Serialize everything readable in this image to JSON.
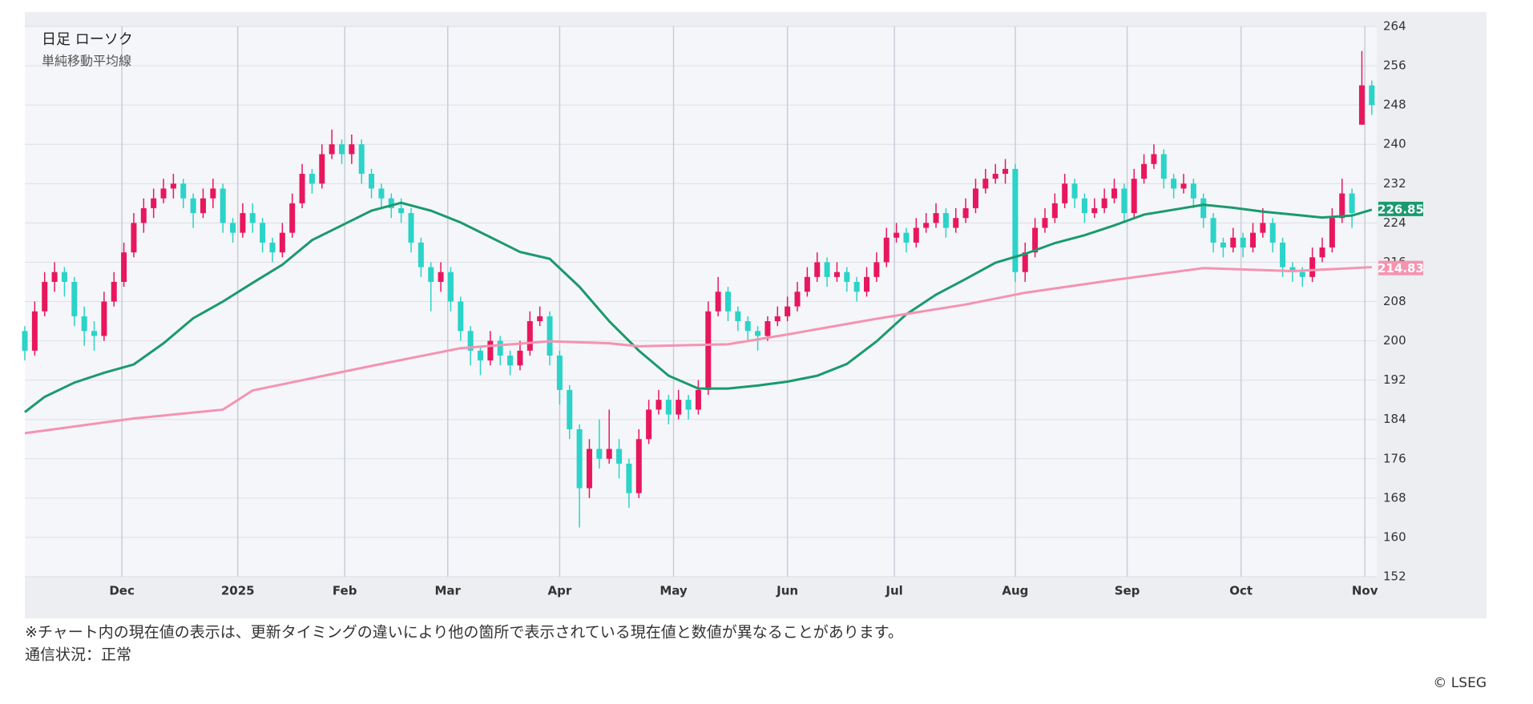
{
  "chart_data": {
    "type": "candlestick",
    "title": "日足 ローソク",
    "subtitle": "単純移動平均線",
    "up_color": "#e8175d",
    "down_color": "#2bd3c9",
    "grid": true,
    "xlim": [
      0,
      136.5
    ],
    "xticks": [
      {
        "value": 9.8,
        "label": "Dec"
      },
      {
        "value": 21.5,
        "label": "2025"
      },
      {
        "value": 32.3,
        "label": "Feb"
      },
      {
        "value": 42.7,
        "label": "Mar"
      },
      {
        "value": 54,
        "label": "Apr"
      },
      {
        "value": 65.5,
        "label": "May"
      },
      {
        "value": 77,
        "label": "Jun"
      },
      {
        "value": 87.8,
        "label": "Jul"
      },
      {
        "value": 100,
        "label": "Aug"
      },
      {
        "value": 111.3,
        "label": "Sep"
      },
      {
        "value": 122.8,
        "label": "Oct"
      },
      {
        "value": 135.3,
        "label": "Nov"
      }
    ],
    "ylim": [
      152,
      264
    ],
    "yticks": [
      152,
      160,
      168,
      176,
      184,
      192,
      200,
      208,
      216,
      224,
      232,
      240,
      248,
      256,
      264
    ],
    "x": [
      0,
      1,
      2,
      3,
      4,
      5,
      6,
      7,
      8,
      9,
      10,
      11,
      12,
      13,
      14,
      15,
      16,
      17,
      18,
      19,
      20,
      21,
      22,
      23,
      24,
      25,
      26,
      27,
      28,
      29,
      30,
      31,
      32,
      33,
      34,
      35,
      36,
      37,
      38,
      39,
      40,
      41,
      42,
      43,
      44,
      45,
      46,
      47,
      48,
      49,
      50,
      51,
      52,
      53,
      54,
      55,
      56,
      57,
      58,
      59,
      60,
      61,
      62,
      63,
      64,
      65,
      66,
      67,
      68,
      69,
      70,
      71,
      72,
      73,
      74,
      75,
      76,
      77,
      78,
      79,
      80,
      81,
      82,
      83,
      84,
      85,
      86,
      87,
      88,
      89,
      90,
      91,
      92,
      93,
      94,
      95,
      96,
      97,
      98,
      99,
      100,
      101,
      102,
      103,
      104,
      105,
      106,
      107,
      108,
      109,
      110,
      111,
      112,
      113,
      114,
      115,
      116,
      117,
      118,
      119,
      120,
      121,
      122,
      123,
      124,
      125,
      126,
      127,
      128,
      129,
      130,
      131,
      132,
      133,
      134,
      135,
      136
    ],
    "open": [
      202,
      198,
      206,
      212,
      214,
      212,
      205,
      202,
      201,
      208,
      212,
      218,
      224,
      227,
      229,
      231,
      232,
      229,
      226,
      229,
      231,
      224,
      222,
      226,
      224,
      220,
      218,
      222,
      228,
      234,
      232,
      238,
      240,
      238,
      240,
      234,
      231,
      229,
      227,
      226,
      220,
      215,
      212,
      214,
      208,
      202,
      198,
      196,
      200,
      197,
      195,
      198,
      204,
      205,
      197,
      190,
      182,
      170,
      178,
      176,
      178,
      175,
      169,
      180,
      186,
      188,
      185,
      188,
      186,
      190,
      206,
      210,
      206,
      204,
      202,
      201,
      204,
      205,
      207,
      210,
      213,
      216,
      213,
      214,
      212,
      210,
      213,
      216,
      221,
      222,
      220,
      223,
      224,
      226,
      223,
      225,
      227,
      231,
      233,
      234,
      235,
      214,
      218,
      223,
      225,
      228,
      232,
      229,
      226,
      227,
      229,
      231,
      226,
      233,
      236,
      238,
      233,
      231,
      232,
      229,
      225,
      220,
      219,
      221,
      219,
      222,
      224,
      220,
      215,
      214,
      213,
      217,
      219,
      225,
      230,
      244,
      252
    ],
    "high": [
      203,
      208,
      214,
      216,
      215,
      213,
      207,
      204,
      210,
      214,
      220,
      226,
      229,
      231,
      233,
      234,
      233,
      230,
      231,
      233,
      232,
      225,
      228,
      228,
      225,
      221,
      224,
      230,
      236,
      235,
      240,
      243,
      241,
      242,
      241,
      235,
      232,
      230,
      229,
      227,
      221,
      216,
      216,
      215,
      209,
      203,
      199,
      202,
      201,
      198,
      200,
      206,
      207,
      206,
      198,
      191,
      183,
      180,
      184,
      186,
      180,
      176,
      182,
      188,
      190,
      189,
      190,
      189,
      192,
      208,
      213,
      211,
      207,
      205,
      203,
      205,
      207,
      209,
      212,
      215,
      218,
      217,
      216,
      215,
      213,
      215,
      218,
      223,
      224,
      223,
      225,
      226,
      228,
      227,
      227,
      229,
      233,
      235,
      236,
      237,
      236,
      220,
      225,
      227,
      230,
      234,
      233,
      230,
      229,
      231,
      233,
      232,
      235,
      238,
      240,
      239,
      234,
      234,
      233,
      230,
      226,
      221,
      223,
      222,
      224,
      227,
      225,
      221,
      216,
      215,
      219,
      221,
      227,
      233,
      231,
      259,
      253
    ],
    "low": [
      196,
      197,
      205,
      210,
      209,
      203,
      199,
      198,
      200,
      207,
      211,
      217,
      222,
      225,
      228,
      229,
      227,
      223,
      225,
      227,
      222,
      220,
      221,
      222,
      218,
      216,
      217,
      221,
      227,
      230,
      231,
      237,
      236,
      236,
      232,
      229,
      227,
      225,
      224,
      218,
      213,
      206,
      210,
      206,
      200,
      195,
      193,
      195,
      195,
      193,
      194,
      197,
      203,
      195,
      187,
      180,
      162,
      168,
      174,
      175,
      172,
      166,
      168,
      179,
      185,
      183,
      184,
      184,
      185,
      189,
      205,
      204,
      202,
      200,
      198,
      200,
      203,
      204,
      206,
      209,
      212,
      211,
      212,
      210,
      208,
      209,
      212,
      215,
      220,
      218,
      219,
      222,
      223,
      221,
      222,
      224,
      226,
      230,
      232,
      232,
      212,
      212,
      217,
      222,
      224,
      227,
      227,
      224,
      225,
      226,
      228,
      224,
      225,
      232,
      235,
      231,
      229,
      230,
      227,
      223,
      218,
      217,
      218,
      217,
      218,
      221,
      218,
      213,
      212,
      211,
      212,
      216,
      218,
      224,
      223,
      244,
      246
    ],
    "close": [
      198,
      206,
      212,
      214,
      212,
      205,
      202,
      201,
      208,
      212,
      218,
      224,
      227,
      229,
      231,
      232,
      229,
      226,
      229,
      231,
      224,
      222,
      226,
      224,
      220,
      218,
      222,
      228,
      234,
      232,
      238,
      240,
      238,
      240,
      234,
      231,
      229,
      227,
      226,
      220,
      215,
      212,
      214,
      208,
      202,
      198,
      196,
      200,
      197,
      195,
      198,
      204,
      205,
      197,
      190,
      182,
      170,
      178,
      176,
      178,
      175,
      169,
      180,
      186,
      188,
      185,
      188,
      186,
      190,
      206,
      210,
      206,
      204,
      202,
      201,
      204,
      205,
      207,
      210,
      213,
      216,
      213,
      214,
      212,
      210,
      213,
      216,
      221,
      222,
      220,
      223,
      224,
      226,
      223,
      225,
      227,
      231,
      233,
      234,
      235,
      214,
      218,
      223,
      225,
      228,
      232,
      229,
      226,
      227,
      229,
      231,
      226,
      233,
      236,
      238,
      233,
      231,
      232,
      229,
      225,
      220,
      219,
      221,
      219,
      222,
      224,
      220,
      215,
      214,
      213,
      217,
      219,
      225,
      230,
      226,
      252,
      248
    ],
    "series": [
      {
        "color": "#1a9a6c",
        "x": [
          0,
          2,
          5,
          8,
          11,
          14,
          17,
          20,
          23,
          26,
          29,
          32,
          35,
          38,
          41,
          44,
          47,
          50,
          53,
          56,
          59,
          62,
          65,
          68,
          71,
          74,
          77,
          80,
          83,
          86,
          89,
          92,
          95,
          98,
          101,
          104,
          107,
          110,
          113,
          116,
          119,
          122,
          125,
          128,
          131,
          134,
          136
        ],
        "values": [
          185.5,
          188.6,
          191.5,
          193.5,
          195.2,
          199.5,
          204.6,
          208,
          211.8,
          215.5,
          220.5,
          223.5,
          226.5,
          228.1,
          226.5,
          224.1,
          221.1,
          218.1,
          216.7,
          211,
          204,
          198,
          192.9,
          190.3,
          190.3,
          190.9,
          191.7,
          192.9,
          195.3,
          199.9,
          205.4,
          209.4,
          212.6,
          215.9,
          217.7,
          219.9,
          221.5,
          223.5,
          225.7,
          226.7,
          227.7,
          227.1,
          226.3,
          225.7,
          225.1,
          225.5,
          226.7
        ],
        "last_value": 226.85
      },
      {
        "color": "#f593b0",
        "x": [
          0,
          11,
          20,
          23,
          35,
          44,
          53,
          59,
          62,
          71,
          77,
          86,
          95,
          101,
          110,
          119,
          128,
          136
        ],
        "values": [
          181.2,
          184.2,
          186,
          189.9,
          194.9,
          198.5,
          199.9,
          199.5,
          198.9,
          199.3,
          201.3,
          204.5,
          207.4,
          209.8,
          212.4,
          214.8,
          214.2,
          215
        ],
        "last_value": 214.83
      }
    ]
  },
  "footer": {
    "notes": [
      "※チャート内の現在値の表示は、更新タイミングの違いにより他の箇所で表示されている現在値と数値が異なることがあります。",
      "通信状況：正常"
    ],
    "copyright": "© LSEG"
  }
}
